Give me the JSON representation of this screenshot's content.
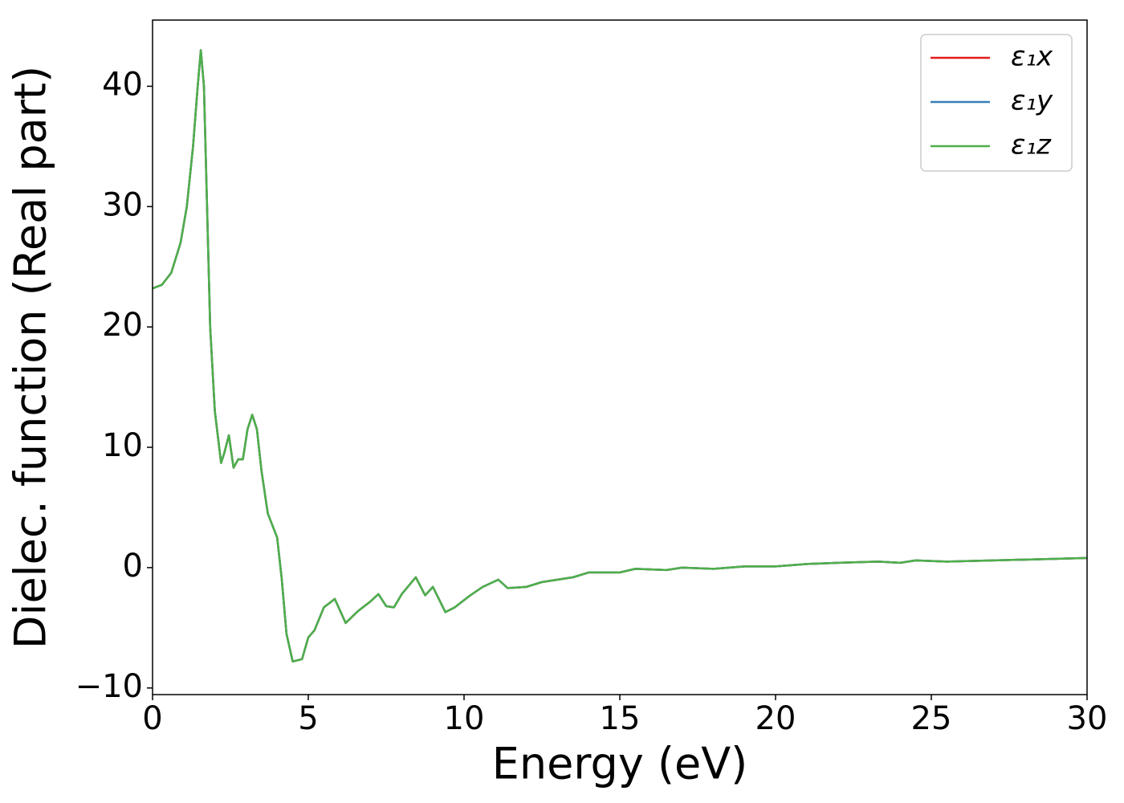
{
  "chart_data": {
    "type": "line",
    "xlabel": "Energy (eV)",
    "ylabel": "Dielec. function (Real part)",
    "x": [
      0,
      0.3,
      0.6,
      0.9,
      1.1,
      1.3,
      1.45,
      1.55,
      1.65,
      1.75,
      1.85,
      2.0,
      2.2,
      2.3,
      2.45,
      2.6,
      2.75,
      2.9,
      3.05,
      3.2,
      3.35,
      3.5,
      3.7,
      4.0,
      4.15,
      4.3,
      4.5,
      4.8,
      5.0,
      5.2,
      5.5,
      5.85,
      6.2,
      6.6,
      7.0,
      7.25,
      7.5,
      7.75,
      8.0,
      8.45,
      8.75,
      9.0,
      9.4,
      9.7,
      10.2,
      10.6,
      11.1,
      11.4,
      12,
      12.5,
      13.5,
      14,
      14.5,
      15,
      15.5,
      16.5,
      17,
      18,
      19,
      20,
      21,
      22,
      23.3,
      24,
      24.5,
      25.5,
      27,
      30
    ],
    "series": [
      {
        "name": "ε₁x",
        "color": "#e41a1c",
        "values": [
          23.2,
          23.5,
          24.5,
          27,
          30,
          35,
          40,
          43,
          40,
          30,
          20,
          13,
          8.7,
          9.5,
          11,
          8.3,
          9,
          9,
          11.5,
          12.7,
          11.5,
          8,
          4.5,
          2.5,
          -1,
          -5.5,
          -7.8,
          -7.6,
          -5.8,
          -5.2,
          -3.3,
          -2.6,
          -4.6,
          -3.6,
          -2.8,
          -2.2,
          -3.2,
          -3.3,
          -2.2,
          -0.8,
          -2.3,
          -1.6,
          -3.7,
          -3.3,
          -2.3,
          -1.6,
          -1.0,
          -1.7,
          -1.6,
          -1.2,
          -0.8,
          -0.4,
          -0.4,
          -0.4,
          -0.1,
          -0.2,
          0,
          -0.1,
          0.1,
          0.1,
          0.3,
          0.4,
          0.5,
          0.4,
          0.6,
          0.5,
          0.6,
          0.8
        ]
      },
      {
        "name": "ε₁y",
        "color": "#377eb8",
        "values": [
          23.2,
          23.5,
          24.5,
          27,
          30,
          35,
          40,
          43,
          40,
          30,
          20,
          13,
          8.7,
          9.5,
          11,
          8.3,
          9,
          9,
          11.5,
          12.7,
          11.5,
          8,
          4.5,
          2.5,
          -1,
          -5.5,
          -7.8,
          -7.6,
          -5.8,
          -5.2,
          -3.3,
          -2.6,
          -4.6,
          -3.6,
          -2.8,
          -2.2,
          -3.2,
          -3.3,
          -2.2,
          -0.8,
          -2.3,
          -1.6,
          -3.7,
          -3.3,
          -2.3,
          -1.6,
          -1.0,
          -1.7,
          -1.6,
          -1.2,
          -0.8,
          -0.4,
          -0.4,
          -0.4,
          -0.1,
          -0.2,
          0,
          -0.1,
          0.1,
          0.1,
          0.3,
          0.4,
          0.5,
          0.4,
          0.6,
          0.5,
          0.6,
          0.8
        ]
      },
      {
        "name": "ε₁z",
        "color": "#4daf4a",
        "values": [
          23.2,
          23.5,
          24.5,
          27,
          30,
          35,
          40,
          43,
          40,
          30,
          20,
          13,
          8.7,
          9.5,
          11,
          8.3,
          9,
          9,
          11.5,
          12.7,
          11.5,
          8,
          4.5,
          2.5,
          -1,
          -5.5,
          -7.8,
          -7.6,
          -5.8,
          -5.2,
          -3.3,
          -2.6,
          -4.6,
          -3.6,
          -2.8,
          -2.2,
          -3.2,
          -3.3,
          -2.2,
          -0.8,
          -2.3,
          -1.6,
          -3.7,
          -3.3,
          -2.3,
          -1.6,
          -1.0,
          -1.7,
          -1.6,
          -1.2,
          -0.8,
          -0.4,
          -0.4,
          -0.4,
          -0.1,
          -0.2,
          0,
          -0.1,
          0.1,
          0.1,
          0.3,
          0.4,
          0.5,
          0.4,
          0.6,
          0.5,
          0.6,
          0.8
        ]
      }
    ],
    "xlim": [
      0,
      30
    ],
    "xticks": [
      0,
      5,
      10,
      15,
      20,
      25,
      30
    ],
    "ylim": [
      -10.55,
      45.5
    ],
    "yticks": [
      {
        "value": -10,
        "label": "−10"
      },
      0,
      10,
      20,
      30,
      40
    ],
    "grid": false,
    "legend": "upper right"
  }
}
